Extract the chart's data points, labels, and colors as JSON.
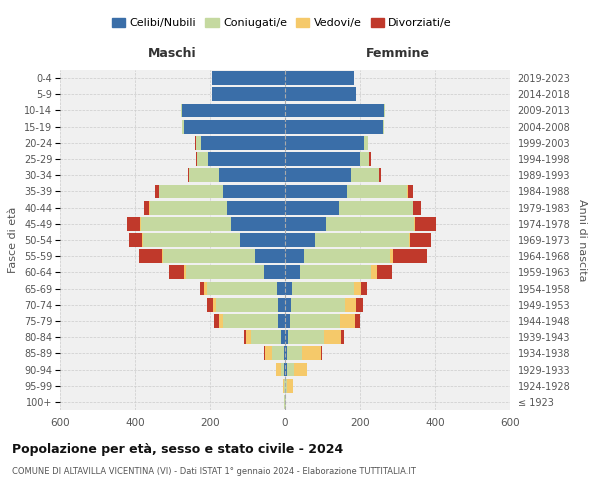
{
  "age_groups": [
    "100+",
    "95-99",
    "90-94",
    "85-89",
    "80-84",
    "75-79",
    "70-74",
    "65-69",
    "60-64",
    "55-59",
    "50-54",
    "45-49",
    "40-44",
    "35-39",
    "30-34",
    "25-29",
    "20-24",
    "15-19",
    "10-14",
    "5-9",
    "0-4"
  ],
  "birth_years": [
    "≤ 1923",
    "1924-1928",
    "1929-1933",
    "1934-1938",
    "1939-1943",
    "1944-1948",
    "1949-1953",
    "1954-1958",
    "1959-1963",
    "1964-1968",
    "1969-1973",
    "1974-1978",
    "1979-1983",
    "1984-1988",
    "1989-1993",
    "1994-1998",
    "1999-2003",
    "2004-2008",
    "2009-2013",
    "2014-2018",
    "2019-2023"
  ],
  "male": {
    "celibi": [
      1,
      1,
      2,
      4,
      10,
      20,
      18,
      22,
      55,
      80,
      120,
      145,
      155,
      165,
      175,
      205,
      225,
      270,
      275,
      195,
      195
    ],
    "coniugati": [
      1,
      2,
      8,
      30,
      80,
      145,
      165,
      185,
      210,
      245,
      260,
      240,
      205,
      170,
      80,
      30,
      12,
      4,
      2,
      0,
      0
    ],
    "vedovi": [
      0,
      2,
      15,
      20,
      15,
      10,
      10,
      8,
      5,
      4,
      2,
      2,
      2,
      2,
      0,
      0,
      0,
      0,
      0,
      0,
      0
    ],
    "divorziati": [
      0,
      0,
      0,
      2,
      5,
      15,
      15,
      12,
      40,
      60,
      35,
      35,
      15,
      10,
      5,
      2,
      2,
      0,
      0,
      0,
      0
    ]
  },
  "female": {
    "nubili": [
      1,
      1,
      4,
      6,
      8,
      12,
      15,
      18,
      40,
      50,
      80,
      110,
      145,
      165,
      175,
      200,
      210,
      260,
      265,
      190,
      185
    ],
    "coniugate": [
      1,
      4,
      20,
      40,
      95,
      135,
      145,
      165,
      190,
      230,
      250,
      235,
      195,
      160,
      75,
      25,
      10,
      3,
      1,
      0,
      0
    ],
    "vedove": [
      1,
      15,
      35,
      50,
      45,
      40,
      30,
      20,
      15,
      8,
      4,
      2,
      2,
      2,
      1,
      0,
      0,
      0,
      0,
      0,
      0
    ],
    "divorziate": [
      0,
      0,
      0,
      2,
      8,
      12,
      18,
      15,
      40,
      90,
      55,
      55,
      20,
      15,
      5,
      3,
      2,
      0,
      0,
      0,
      0
    ]
  },
  "colors": {
    "celibi": "#3a6ea8",
    "coniugati": "#c5d9a0",
    "vedovi": "#f5c96a",
    "divorziati": "#c0392b"
  },
  "title": "Popolazione per età, sesso e stato civile - 2024",
  "subtitle": "COMUNE DI ALTAVILLA VICENTINA (VI) - Dati ISTAT 1° gennaio 2024 - Elaborazione TUTTITALIA.IT",
  "xlabel_left": "Maschi",
  "xlabel_right": "Femmine",
  "ylabel_left": "Fasce di età",
  "ylabel_right": "Anni di nascita",
  "xlim": 600,
  "legend_labels": [
    "Celibi/Nubili",
    "Coniugati/e",
    "Vedovi/e",
    "Divorziati/e"
  ],
  "bg_color": "#ffffff",
  "grid_color": "#cccccc"
}
